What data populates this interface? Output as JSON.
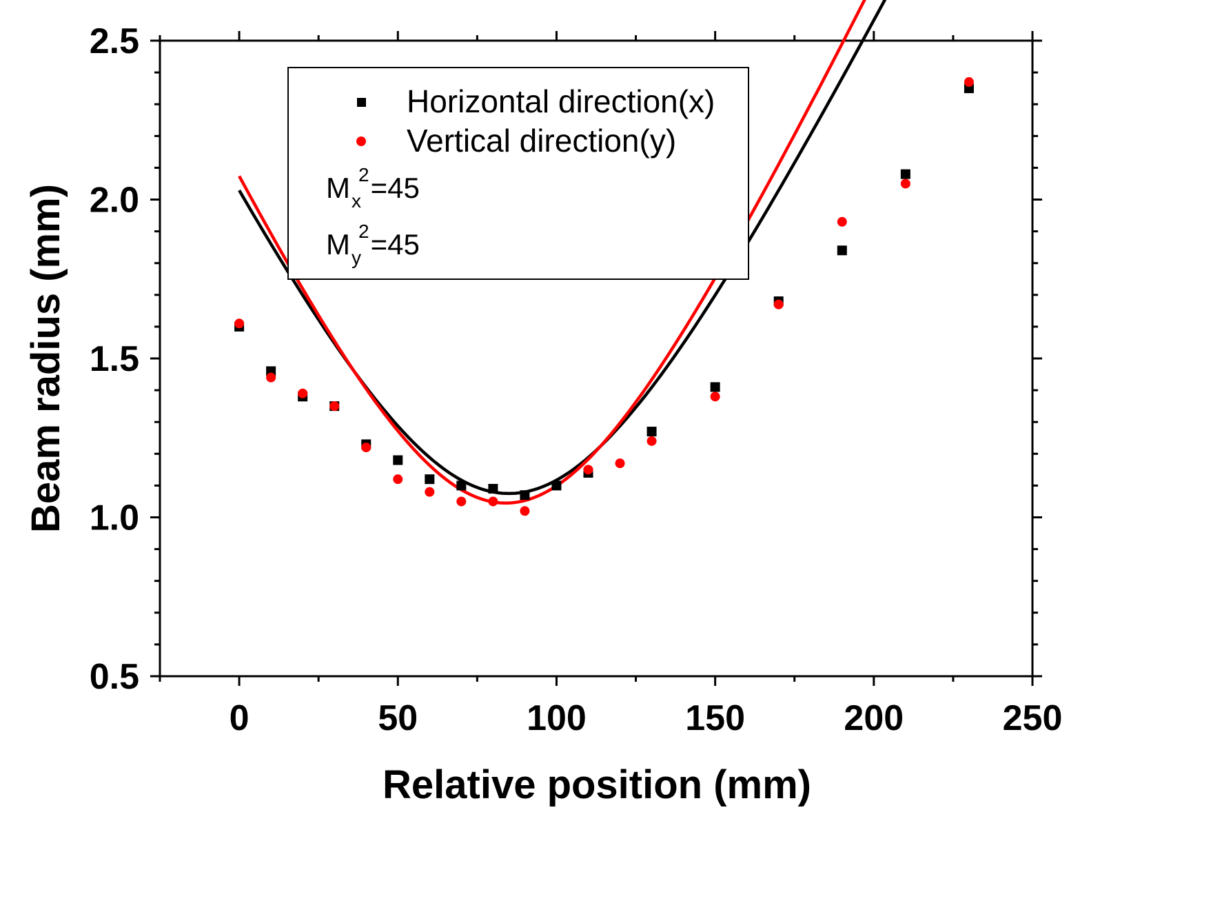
{
  "chart_data": {
    "type": "scatter",
    "title": "",
    "xlabel": "Relative position (mm)",
    "ylabel": "Beam radius (mm)",
    "xlim": [
      -25,
      250
    ],
    "ylim": [
      0.5,
      2.5
    ],
    "x_ticks": [
      0,
      50,
      100,
      150,
      200,
      250
    ],
    "x_tick_labels": [
      "0",
      "50",
      "100",
      "150",
      "200",
      "250"
    ],
    "y_ticks": [
      0.5,
      1.0,
      1.5,
      2.0,
      2.5
    ],
    "y_tick_labels": [
      "0.5",
      "1.0",
      "1.5",
      "2.0",
      "2.5"
    ],
    "legend_position": "top-center",
    "series": [
      {
        "name": "Horizontal direction(x)",
        "color": "#000000",
        "marker": "square",
        "x": [
          0,
          10,
          20,
          30,
          40,
          50,
          60,
          70,
          80,
          90,
          100,
          110,
          130,
          150,
          170,
          190,
          210,
          230
        ],
        "y": [
          1.6,
          1.46,
          1.38,
          1.35,
          1.23,
          1.18,
          1.12,
          1.1,
          1.09,
          1.07,
          1.1,
          1.14,
          1.27,
          1.41,
          1.68,
          1.84,
          2.08,
          2.35
        ],
        "fit": {
          "w0": 1.075,
          "z0": 85,
          "zr": 53.1
        }
      },
      {
        "name": "Vertical direction(y)",
        "color": "#ff0000",
        "marker": "circle",
        "x": [
          0,
          10,
          20,
          30,
          40,
          50,
          60,
          70,
          80,
          90,
          110,
          120,
          130,
          150,
          170,
          190,
          210,
          230
        ],
        "y": [
          1.61,
          1.44,
          1.39,
          1.35,
          1.22,
          1.12,
          1.08,
          1.05,
          1.05,
          1.02,
          1.15,
          1.17,
          1.24,
          1.38,
          1.67,
          1.93,
          2.05,
          2.37
        ],
        "fit": {
          "w0": 1.045,
          "z0": 84,
          "zr": 49.0
        }
      }
    ],
    "annotations": [
      {
        "base": "M",
        "sub": "x",
        "sup": "2",
        "text": "=45"
      },
      {
        "base": "M",
        "sub": "y",
        "sup": "2",
        "text": "=45"
      }
    ]
  }
}
